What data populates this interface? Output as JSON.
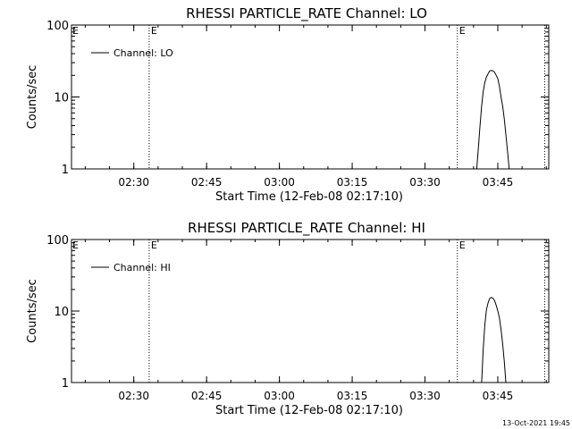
{
  "chart_data": [
    {
      "type": "line",
      "title": "RHESSI PARTICLE_RATE Channel: LO",
      "xlabel": "Start Time (12-Feb-08 02:17:10)",
      "ylabel": "Counts/sec",
      "y_scale": "log",
      "ylim": [
        1,
        100
      ],
      "xlim": [
        "02:17:10",
        "03:55:30"
      ],
      "grid": false,
      "legend_position": "top-left",
      "x_ticks": [
        "02:30",
        "02:45",
        "03:00",
        "03:15",
        "03:30",
        "03:45"
      ],
      "y_ticks": [
        "1",
        "10",
        "100"
      ],
      "markers": [
        {
          "time": "02:33:10",
          "label": "E"
        },
        {
          "time": "03:36:40",
          "label": "E"
        },
        {
          "time": "03:54:40",
          "label": ""
        }
      ],
      "series": [
        {
          "name": "Channel: LO",
          "x": [
            "03:40:40",
            "03:41:00",
            "03:41:20",
            "03:41:40",
            "03:42:00",
            "03:42:20",
            "03:42:40",
            "03:43:00",
            "03:43:20",
            "03:43:40",
            "03:44:00",
            "03:44:20",
            "03:44:40",
            "03:45:00",
            "03:45:20",
            "03:45:40",
            "03:46:00",
            "03:46:20",
            "03:46:40",
            "03:47:00",
            "03:47:20"
          ],
          "y": [
            1,
            2.0,
            4.0,
            7.5,
            12,
            16,
            19,
            21,
            23,
            23.3,
            23.2,
            22,
            20,
            18,
            14,
            10,
            7.5,
            5,
            3,
            1.8,
            1
          ]
        }
      ]
    },
    {
      "type": "line",
      "title": "RHESSI PARTICLE_RATE Channel: HI",
      "xlabel": "Start Time (12-Feb-08 02:17:10)",
      "ylabel": "Counts/sec",
      "y_scale": "log",
      "ylim": [
        1,
        100
      ],
      "xlim": [
        "02:17:10",
        "03:55:30"
      ],
      "grid": false,
      "legend_position": "top-left",
      "x_ticks": [
        "02:30",
        "02:45",
        "03:00",
        "03:15",
        "03:30",
        "03:45"
      ],
      "y_ticks": [
        "1",
        "10",
        "100"
      ],
      "markers": [
        {
          "time": "02:33:10",
          "label": "E"
        },
        {
          "time": "03:36:40",
          "label": "E"
        },
        {
          "time": "03:54:40",
          "label": ""
        }
      ],
      "series": [
        {
          "name": "Channel: HI",
          "x": [
            "03:41:40",
            "03:42:00",
            "03:42:20",
            "03:42:40",
            "03:43:00",
            "03:43:20",
            "03:43:40",
            "03:44:00",
            "03:44:20",
            "03:44:40",
            "03:45:00",
            "03:45:20",
            "03:45:40",
            "03:46:00",
            "03:46:20",
            "03:46:40"
          ],
          "y": [
            1,
            3.0,
            6.5,
            10.5,
            13,
            15,
            15.5,
            15.2,
            14,
            12,
            10,
            8,
            5.5,
            3.5,
            2.0,
            1
          ]
        }
      ]
    }
  ],
  "footer": {
    "timestamp": "13-Oct-2021 19:45"
  },
  "colors": {
    "background": "#ffffff",
    "foreground": "#000000"
  }
}
